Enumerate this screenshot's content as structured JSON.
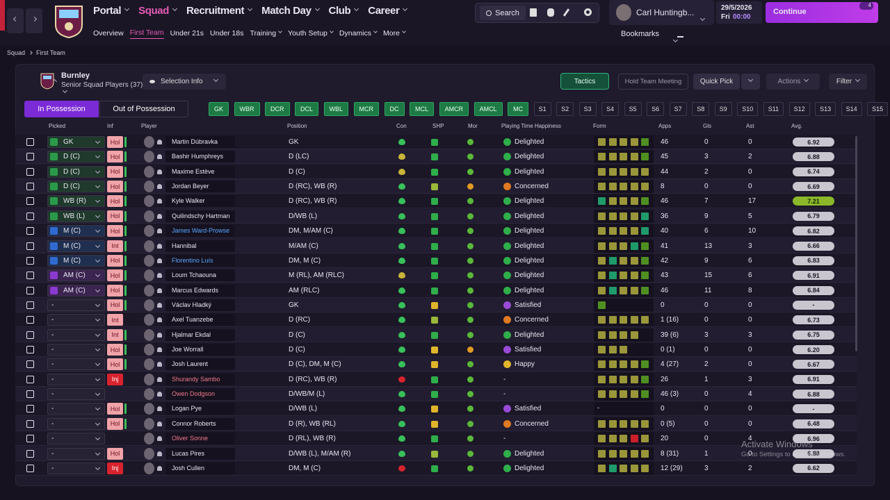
{
  "nav": {
    "main": [
      "Portal",
      "Squad",
      "Recruitment",
      "Match Day",
      "Club",
      "Career"
    ],
    "sub": [
      "Overview",
      "First Team",
      "Under 21s",
      "Under 18s",
      "Training",
      "Youth Setup",
      "Dynamics",
      "More"
    ]
  },
  "search": "Search",
  "manager": {
    "name": "Carl Huntingb...",
    "date": "29/5/2026",
    "day": "Fri",
    "time": "00:00"
  },
  "continue": "Continue",
  "notifications": "4",
  "bookmarks": "Bookmarks",
  "breadcrumb": [
    "Squad",
    "First Team"
  ],
  "team": {
    "name": "Burnley",
    "subtitle": "Senior Squad Players (37)"
  },
  "buttons": {
    "selection_info": "Selection Info",
    "tactics": "Tactics",
    "team_meeting": "Hold Team Meeting",
    "quick_pick": "Quick Pick",
    "actions": "Actions",
    "filter": "Filter"
  },
  "tabs": [
    "In Possession",
    "Out of Possession"
  ],
  "positions": [
    "GK",
    "WBR",
    "DCR",
    "DCL",
    "WBL",
    "MCR",
    "DC",
    "MCL",
    "AMCR",
    "AMCL",
    "MC",
    "S1",
    "S2",
    "S3",
    "S4",
    "S5",
    "S6",
    "S7",
    "S8",
    "S9",
    "S10",
    "S11",
    "S12",
    "S13",
    "S14",
    "S15"
  ],
  "table": {
    "columns": [
      "Picked",
      "Inf",
      "Player",
      "Position",
      "Con",
      "SHP",
      "Mor",
      "Playing Time Happiness",
      "Form",
      "Apps",
      "Gls",
      "Ast",
      "Avg."
    ],
    "rows": [
      {
        "picked": "GK",
        "inf": "Hol",
        "name": "Martin Dúbravka",
        "position": "GK",
        "happiness": "Delighted",
        "apps": "46",
        "gls": "0",
        "ast": "0",
        "avg": "6.92"
      },
      {
        "picked": "D (C)",
        "inf": "Hol",
        "name": "Bashir Humphreys",
        "position": "D (LC)",
        "happiness": "Delighted",
        "apps": "45",
        "gls": "3",
        "ast": "2",
        "avg": "6.88"
      },
      {
        "picked": "D (C)",
        "inf": "Hol",
        "name": "Maxime Estève",
        "position": "D (C)",
        "happiness": "Delighted",
        "apps": "44",
        "gls": "2",
        "ast": "0",
        "avg": "6.74"
      },
      {
        "picked": "D (C)",
        "inf": "Hol",
        "name": "Jordan Beyer",
        "position": "D (RC), WB (R)",
        "happiness": "Concerned",
        "apps": "8",
        "gls": "0",
        "ast": "0",
        "avg": "6.69"
      },
      {
        "picked": "WB (R)",
        "inf": "Hol",
        "name": "Kyle Walker",
        "position": "D (RC), WB (R)",
        "happiness": "Delighted",
        "apps": "46",
        "gls": "7",
        "ast": "17",
        "avg": "7.21"
      },
      {
        "picked": "WB (L)",
        "inf": "Hol",
        "name": "Quilindschy Hartman",
        "position": "D/WB (L)",
        "happiness": "Delighted",
        "apps": "36",
        "gls": "9",
        "ast": "5",
        "avg": "6.79"
      },
      {
        "picked": "M (C)",
        "inf": "Hol",
        "name": "James Ward-Prowse",
        "position": "DM, M/AM (C)",
        "happiness": "Delighted",
        "apps": "40",
        "gls": "6",
        "ast": "10",
        "avg": "6.82"
      },
      {
        "picked": "M (C)",
        "inf": "Int",
        "name": "Hannibal",
        "position": "M/AM (C)",
        "happiness": "Delighted",
        "apps": "41",
        "gls": "13",
        "ast": "3",
        "avg": "6.66"
      },
      {
        "picked": "M (C)",
        "inf": "Hol",
        "name": "Florentino Luís",
        "position": "DM, M (C)",
        "happiness": "Delighted",
        "apps": "42",
        "gls": "9",
        "ast": "6",
        "avg": "6.83"
      },
      {
        "picked": "AM (C)",
        "inf": "Hol",
        "name": "Loum Tchaouna",
        "position": "M (RL), AM (RLC)",
        "happiness": "Delighted",
        "apps": "43",
        "gls": "15",
        "ast": "6",
        "avg": "6.91"
      },
      {
        "picked": "AM (C)",
        "inf": "Hol",
        "name": "Marcus Edwards",
        "position": "AM (RLC)",
        "happiness": "Delighted",
        "apps": "46",
        "gls": "11",
        "ast": "8",
        "avg": "6.84"
      },
      {
        "picked": "-",
        "inf": "Hol",
        "name": "Václav Hladký",
        "position": "GK",
        "happiness": "Satisfied",
        "apps": "0",
        "gls": "0",
        "ast": "0",
        "avg": "-"
      },
      {
        "picked": "-",
        "inf": "Int",
        "name": "Axel Tuanzebe",
        "position": "D (RC)",
        "happiness": "Concerned",
        "apps": "1 (16)",
        "gls": "0",
        "ast": "0",
        "avg": "6.73"
      },
      {
        "picked": "-",
        "inf": "Int",
        "name": "Hjalmar Ekdal",
        "position": "D (C)",
        "happiness": "Delighted",
        "apps": "39 (6)",
        "gls": "3",
        "ast": "3",
        "avg": "6.75"
      },
      {
        "picked": "-",
        "inf": "Hol",
        "name": "Joe Worrall",
        "position": "D (C)",
        "happiness": "Satisfied",
        "apps": "0 (1)",
        "gls": "0",
        "ast": "0",
        "avg": "6.20"
      },
      {
        "picked": "-",
        "inf": "Hol",
        "name": "Josh Laurent",
        "position": "D (C), DM, M (C)",
        "happiness": "Happy",
        "apps": "4 (27)",
        "gls": "2",
        "ast": "0",
        "avg": "6.67"
      },
      {
        "picked": "-",
        "inf": "Inj",
        "name": "Shurandy Sambo",
        "position": "D (RC), WB (R)",
        "happiness": "-",
        "apps": "26",
        "gls": "1",
        "ast": "3",
        "avg": "6.91"
      },
      {
        "picked": "-",
        "name": "Owen Dodgson",
        "position": "D/WB/M (L)",
        "happiness": "-",
        "apps": "46 (3)",
        "gls": "0",
        "ast": "4",
        "avg": "6.88"
      },
      {
        "picked": "-",
        "inf": "Hol",
        "name": "Logan Pye",
        "position": "D/WB (L)",
        "happiness": "Satisfied",
        "form": "-",
        "apps": "0",
        "gls": "0",
        "ast": "0",
        "avg": "-"
      },
      {
        "picked": "-",
        "inf": "Hol",
        "name": "Connor Roberts",
        "position": "D (R), WB (RL)",
        "happiness": "Concerned",
        "apps": "0 (5)",
        "gls": "0",
        "ast": "0",
        "avg": "6.48"
      },
      {
        "picked": "-",
        "name": "Oliver Sonne",
        "position": "D (RL), WB (R)",
        "happiness": "-",
        "apps": "20",
        "gls": "0",
        "ast": "4",
        "avg": "6.96"
      },
      {
        "picked": "-",
        "inf": "Hol",
        "name": "Lucas Pires",
        "position": "D/WB (L), M/AM (R)",
        "happiness": "Delighted",
        "apps": "8 (31)",
        "gls": "1",
        "ast": "0",
        "avg": "6.88"
      },
      {
        "picked": "-",
        "inf": "Inj",
        "name": "Josh Cullen",
        "position": "DM, M (C)",
        "happiness": "Delighted",
        "apps": "12 (29)",
        "gls": "3",
        "ast": "2",
        "avg": "6.62"
      }
    ]
  },
  "watermark": {
    "title": "Activate Windows",
    "text": "Go to Settings to activate Windows."
  }
}
